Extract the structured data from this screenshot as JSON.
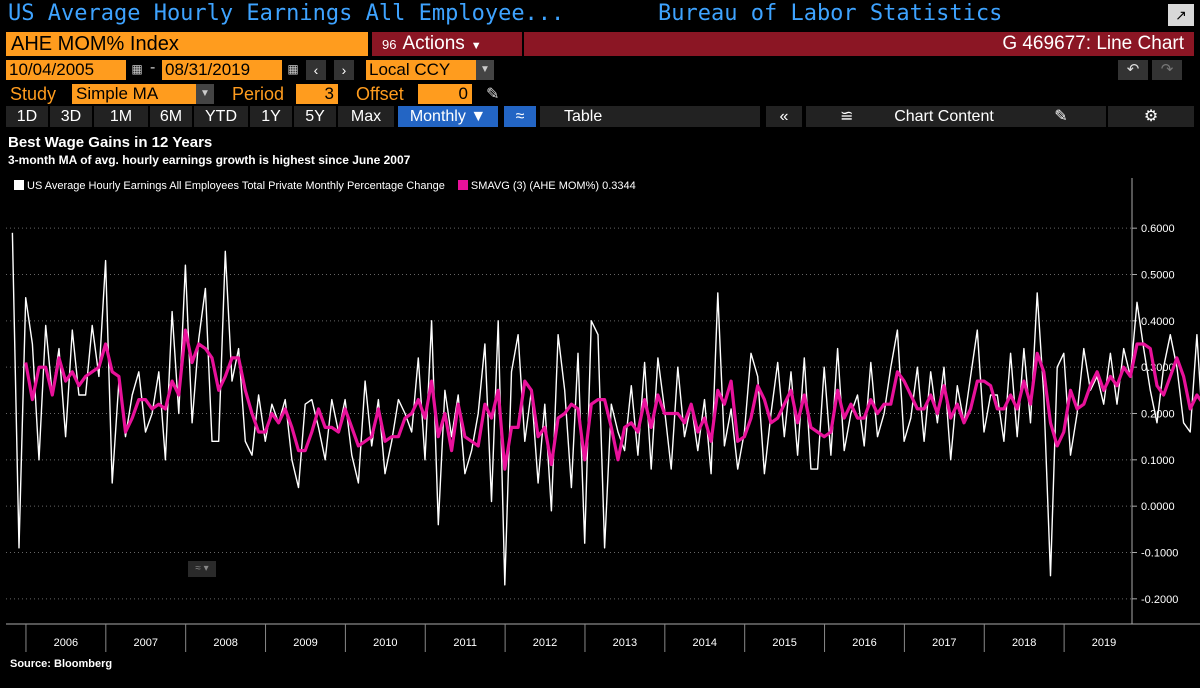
{
  "header": {
    "title": "US Average Hourly Earnings All Employee...",
    "source_name": "Bureau of Labor Statistics",
    "ticker": "AHE MOM% Index",
    "actions_code": "96",
    "actions_label": "Actions",
    "chart_id": "G 469677: Line Chart"
  },
  "dates": {
    "start": "10/04/2005",
    "end": "08/31/2019",
    "currency": "Local CCY"
  },
  "study": {
    "label": "Study",
    "value": "Simple MA",
    "period_label": "Period",
    "period_value": "3",
    "offset_label": "Offset",
    "offset_value": "0"
  },
  "toolbar": {
    "ranges": [
      "1D",
      "3D",
      "1M",
      "6M",
      "YTD",
      "1Y",
      "5Y",
      "Max"
    ],
    "frequency": "Monthly",
    "table_label": "Table",
    "chart_content_label": "Chart Content"
  },
  "colors": {
    "accent_orange": "#ff9c1e",
    "bar_red": "#8b1624",
    "title_blue": "#3ea3ff",
    "active_blue": "#2365c4",
    "series_white": "#ffffff",
    "series_magenta": "#e8119a"
  },
  "icons": [
    "calendar-icon",
    "back-arrow-icon",
    "forward-arrow-icon",
    "undo-icon",
    "redo-icon",
    "pencil-icon",
    "chart-type-icon",
    "collapse-icon",
    "line-chart-icon",
    "edit-icon",
    "gear-icon"
  ],
  "chart_data": {
    "type": "line",
    "title": "Best Wage Gains in 12 Years",
    "subtitle": "3-month MA of avg. hourly earnings growth is highest since June 2007",
    "source": "Source: Bloomberg",
    "x_start": 2005.83,
    "x_step": 0.08333,
    "xlim": [
      2005.75,
      2019.85
    ],
    "ylim": [
      -0.25,
      0.65
    ],
    "yticks": [
      -0.2,
      -0.1,
      0.0,
      0.1,
      0.2,
      0.3,
      0.4,
      0.5,
      0.6
    ],
    "ytick_labels": [
      "-0.2000",
      "-0.1000",
      "0.0000",
      "0.1000",
      "0.2000",
      "0.3000",
      "0.4000",
      "0.5000",
      "0.6000"
    ],
    "xticks": [
      "2006",
      "2007",
      "2008",
      "2009",
      "2010",
      "2011",
      "2012",
      "2013",
      "2014",
      "2015",
      "2016",
      "2017",
      "2018",
      "2019"
    ],
    "legend_position": "top-left",
    "grid": "horizontal dotted",
    "series": [
      {
        "name": "US Average Hourly Earnings All Employees Total Private Monthly Percentage Change",
        "color": "#ffffff",
        "values": [
          0.59,
          -0.09,
          0.45,
          0.35,
          0.1,
          0.39,
          0.24,
          0.34,
          0.15,
          0.38,
          0.24,
          0.24,
          0.39,
          0.28,
          0.53,
          0.05,
          0.27,
          0.15,
          0.24,
          0.29,
          0.16,
          0.2,
          0.29,
          0.1,
          0.42,
          0.2,
          0.52,
          0.18,
          0.36,
          0.47,
          0.14,
          0.14,
          0.55,
          0.27,
          0.34,
          0.14,
          0.11,
          0.24,
          0.14,
          0.22,
          0.18,
          0.23,
          0.1,
          0.04,
          0.22,
          0.23,
          0.17,
          0.1,
          0.23,
          0.16,
          0.23,
          0.11,
          0.05,
          0.27,
          0.13,
          0.23,
          0.07,
          0.14,
          0.23,
          0.2,
          0.16,
          0.32,
          0.1,
          0.4,
          -0.04,
          0.25,
          0.15,
          0.24,
          0.07,
          0.12,
          0.2,
          0.35,
          0.01,
          0.4,
          -0.17,
          0.29,
          0.37,
          0.14,
          0.25,
          0.05,
          0.22,
          -0.01,
          0.37,
          0.25,
          0.04,
          0.33,
          -0.08,
          0.4,
          0.37,
          -0.09,
          0.22,
          0.16,
          0.12,
          0.26,
          0.11,
          0.31,
          0.08,
          0.32,
          0.21,
          0.08,
          0.3,
          0.15,
          0.22,
          0.12,
          0.23,
          0.07,
          0.46,
          0.13,
          0.21,
          0.08,
          0.16,
          0.33,
          0.28,
          0.07,
          0.2,
          0.31,
          0.15,
          0.29,
          0.11,
          0.32,
          0.08,
          0.08,
          0.3,
          0.11,
          0.34,
          0.12,
          0.2,
          0.24,
          0.13,
          0.31,
          0.15,
          0.2,
          0.3,
          0.38,
          0.14,
          0.19,
          0.3,
          0.14,
          0.29,
          0.18,
          0.3,
          0.1,
          0.26,
          0.18,
          0.28,
          0.38,
          0.16,
          0.24,
          0.24,
          0.14,
          0.33,
          0.15,
          0.34,
          0.18,
          0.46,
          0.24,
          -0.15,
          0.3,
          0.33,
          0.11,
          0.2,
          0.34,
          0.25,
          0.28,
          0.22,
          0.33,
          0.22,
          0.34,
          0.28,
          0.44,
          0.34,
          0.25,
          0.18,
          0.3,
          0.37,
          0.3,
          0.18,
          0.16,
          0.37,
          0.14,
          0.22,
          0.27,
          0.32,
          0.3,
          0.39
        ]
      },
      {
        "name": "SMAVG (3) (AHE MOM%) 0.3344",
        "color": "#e8119a",
        "values": [
          null,
          null,
          0.31,
          0.23,
          0.3,
          0.3,
          0.24,
          0.32,
          0.27,
          0.29,
          0.26,
          0.28,
          0.29,
          0.3,
          0.35,
          0.29,
          0.28,
          0.16,
          0.19,
          0.23,
          0.23,
          0.21,
          0.22,
          0.21,
          0.27,
          0.24,
          0.38,
          0.31,
          0.35,
          0.34,
          0.32,
          0.25,
          0.28,
          0.32,
          0.32,
          0.25,
          0.2,
          0.16,
          0.16,
          0.2,
          0.18,
          0.21,
          0.17,
          0.12,
          0.12,
          0.16,
          0.21,
          0.17,
          0.17,
          0.16,
          0.21,
          0.17,
          0.13,
          0.14,
          0.15,
          0.21,
          0.14,
          0.15,
          0.15,
          0.19,
          0.2,
          0.23,
          0.19,
          0.27,
          0.15,
          0.2,
          0.12,
          0.22,
          0.15,
          0.14,
          0.13,
          0.22,
          0.19,
          0.25,
          0.08,
          0.17,
          0.17,
          0.27,
          0.25,
          0.15,
          0.17,
          0.09,
          0.19,
          0.2,
          0.22,
          0.21,
          0.1,
          0.22,
          0.23,
          0.23,
          0.17,
          0.1,
          0.17,
          0.18,
          0.16,
          0.23,
          0.17,
          0.24,
          0.2,
          0.2,
          0.2,
          0.18,
          0.22,
          0.16,
          0.19,
          0.14,
          0.25,
          0.22,
          0.27,
          0.14,
          0.15,
          0.19,
          0.26,
          0.23,
          0.18,
          0.19,
          0.22,
          0.25,
          0.18,
          0.24,
          0.17,
          0.16,
          0.15,
          0.16,
          0.25,
          0.19,
          0.22,
          0.19,
          0.19,
          0.23,
          0.2,
          0.22,
          0.22,
          0.29,
          0.27,
          0.24,
          0.21,
          0.21,
          0.24,
          0.2,
          0.26,
          0.19,
          0.22,
          0.18,
          0.21,
          0.27,
          0.27,
          0.26,
          0.21,
          0.21,
          0.24,
          0.21,
          0.27,
          0.22,
          0.33,
          0.29,
          0.18,
          0.13,
          0.16,
          0.25,
          0.21,
          0.22,
          0.26,
          0.29,
          0.25,
          0.28,
          0.26,
          0.3,
          0.28,
          0.35,
          0.35,
          0.34,
          0.26,
          0.24,
          0.28,
          0.32,
          0.28,
          0.21,
          0.24,
          0.22,
          0.24,
          0.21,
          0.27,
          0.3,
          0.33
        ]
      }
    ]
  }
}
